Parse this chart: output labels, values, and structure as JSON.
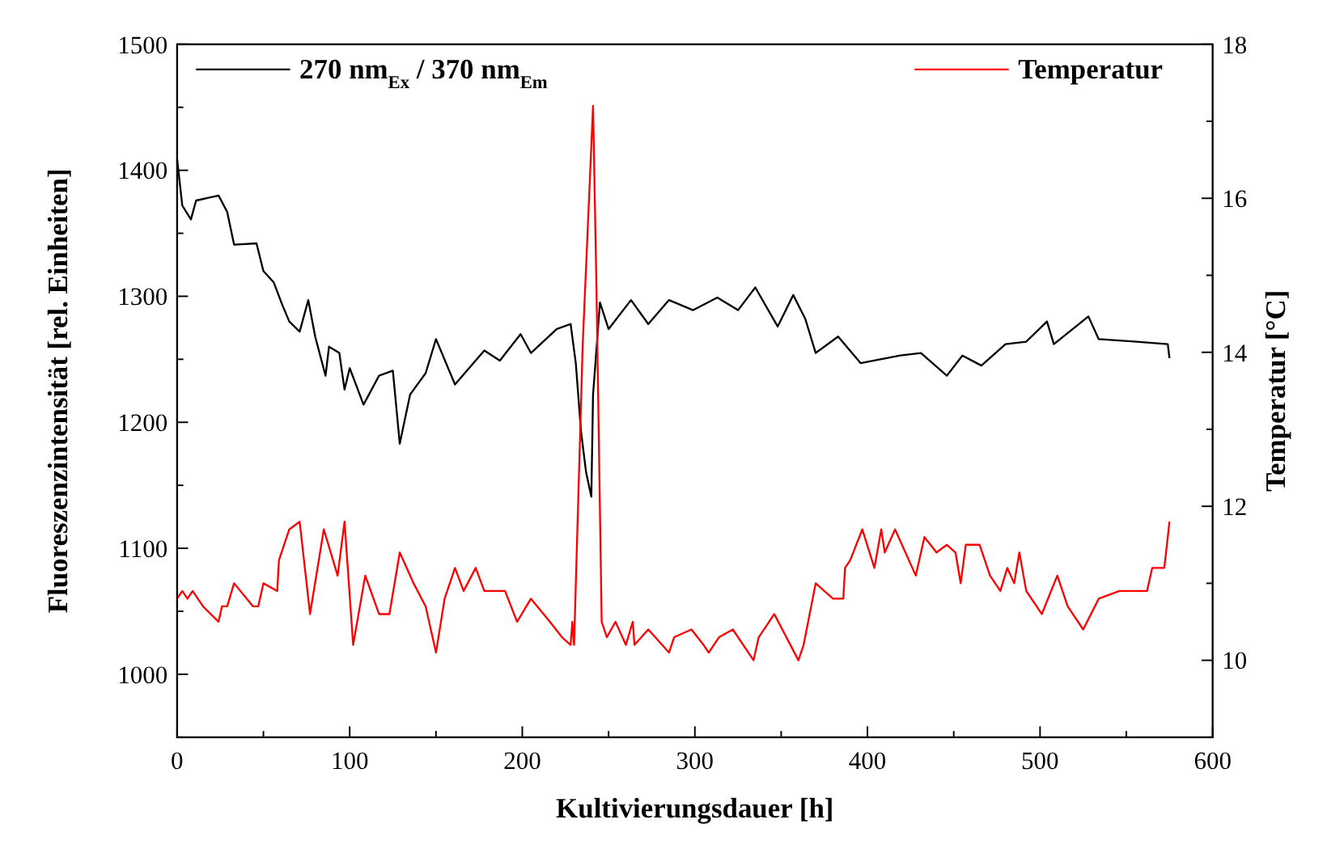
{
  "chart_data": {
    "type": "line",
    "xlabel": "Kultivierungsdauer [h]",
    "ylabel": "Fluoreszenzintensität [rel. Einheiten]",
    "y2label": "Temperatur [°C]",
    "xlim": [
      0,
      600
    ],
    "xticks": [
      0,
      {
        "value": 50,
        "label": null
      },
      100,
      {
        "value": 150,
        "label": null
      },
      200,
      {
        "value": 250,
        "label": null
      },
      300,
      {
        "value": 350,
        "label": null
      },
      400,
      {
        "value": 450,
        "label": null
      },
      500,
      {
        "value": 550,
        "label": null
      },
      600
    ],
    "ylim": [
      950,
      1500
    ],
    "yticks": [
      {
        "value": 950,
        "label": null
      },
      1000,
      {
        "value": 1050,
        "label": null
      },
      1100,
      {
        "value": 1150,
        "label": null
      },
      1200,
      {
        "value": 1250,
        "label": null
      },
      1300,
      {
        "value": 1350,
        "label": null
      },
      1400,
      {
        "value": 1450,
        "label": null
      },
      1500
    ],
    "y2lim": [
      9,
      18
    ],
    "y2ticks": [
      {
        "value": 9,
        "label": null
      },
      10,
      {
        "value": 11,
        "label": null
      },
      12,
      {
        "value": 13,
        "label": null
      },
      14,
      {
        "value": 15,
        "label": null
      },
      16,
      {
        "value": 17,
        "label": null
      },
      18
    ],
    "legend": "top",
    "grid": false,
    "line_style": "solid",
    "series": [
      {
        "name": "270 nm$_{Ex}$ / 370 nm$_{Em}$",
        "color": "#000000",
        "x": [
          0,
          3,
          8,
          11,
          24,
          29,
          33,
          46,
          50,
          56,
          61,
          65,
          71,
          76,
          80,
          86,
          88,
          94,
          97,
          100,
          108,
          117,
          125,
          129,
          135,
          144,
          150,
          161,
          178,
          187,
          199,
          205,
          220,
          228,
          231,
          234,
          237,
          240,
          241,
          245,
          250,
          263,
          273,
          285,
          299,
          313,
          325,
          335,
          348,
          357,
          364,
          370,
          383,
          396,
          419,
          431,
          446,
          455,
          466,
          480,
          492,
          504,
          508,
          528,
          534,
          556,
          574,
          575
        ],
        "values": [
          1409,
          1372,
          1361,
          1376,
          1380,
          1367,
          1341,
          1342,
          1320,
          1311,
          1293,
          1280,
          1272,
          1297,
          1268,
          1237,
          1260,
          1255,
          1226,
          1243,
          1214,
          1237,
          1241,
          1183,
          1222,
          1239,
          1266,
          1230,
          1257,
          1249,
          1270,
          1255,
          1274,
          1278,
          1247,
          1193,
          1160,
          1141,
          1222,
          1295,
          1274,
          1297,
          1278,
          1297,
          1289,
          1299,
          1289,
          1307,
          1276,
          1301,
          1282,
          1255,
          1268,
          1247,
          1253,
          1255,
          1237,
          1253,
          1245,
          1262,
          1264,
          1280,
          1262,
          1284,
          1266,
          1264,
          1262,
          1251
        ]
      },
      {
        "name": "Temperatur",
        "color": "#ff0000",
        "axis": "y2",
        "x": [
          0,
          3,
          6,
          9,
          15,
          24,
          26,
          29,
          33,
          44,
          47,
          50,
          58,
          59,
          65,
          71,
          77,
          85,
          93,
          97,
          102,
          109,
          117,
          123,
          129,
          137,
          144,
          150,
          155,
          161,
          166,
          173,
          178,
          190,
          197,
          205,
          216,
          223,
          228,
          229,
          230,
          235,
          241,
          243,
          246,
          249,
          254,
          260,
          264,
          265,
          273,
          285,
          288,
          298,
          305,
          308,
          314,
          322,
          334,
          337,
          346,
          360,
          363,
          370,
          380,
          386,
          387,
          390,
          397,
          404,
          408,
          410,
          416,
          428,
          433,
          440,
          446,
          451,
          454,
          457,
          465,
          471,
          477,
          481,
          485,
          488,
          492,
          501,
          510,
          516,
          525,
          534,
          546,
          562,
          565,
          572,
          575
        ],
        "values": [
          10.8,
          10.9,
          10.8,
          10.9,
          10.7,
          10.5,
          10.7,
          10.7,
          11.0,
          10.7,
          10.7,
          11.0,
          10.9,
          11.3,
          11.7,
          11.8,
          10.6,
          11.7,
          11.1,
          11.8,
          10.2,
          11.1,
          10.6,
          10.6,
          11.4,
          11.0,
          10.7,
          10.1,
          10.8,
          11.2,
          10.9,
          11.2,
          10.9,
          10.9,
          10.5,
          10.8,
          10.5,
          10.3,
          10.2,
          10.5,
          10.2,
          14.1,
          17.2,
          14.8,
          10.5,
          10.3,
          10.5,
          10.2,
          10.5,
          10.2,
          10.4,
          10.1,
          10.3,
          10.4,
          10.2,
          10.1,
          10.3,
          10.4,
          10.0,
          10.3,
          10.6,
          10.0,
          10.2,
          11.0,
          10.8,
          10.8,
          11.2,
          11.3,
          11.7,
          11.2,
          11.7,
          11.4,
          11.7,
          11.1,
          11.6,
          11.4,
          11.5,
          11.4,
          11.0,
          11.5,
          11.5,
          11.1,
          10.9,
          11.2,
          11.0,
          11.4,
          10.9,
          10.6,
          11.1,
          10.7,
          10.4,
          10.8,
          10.9,
          10.9,
          11.2,
          11.2,
          11.8
        ]
      }
    ]
  }
}
